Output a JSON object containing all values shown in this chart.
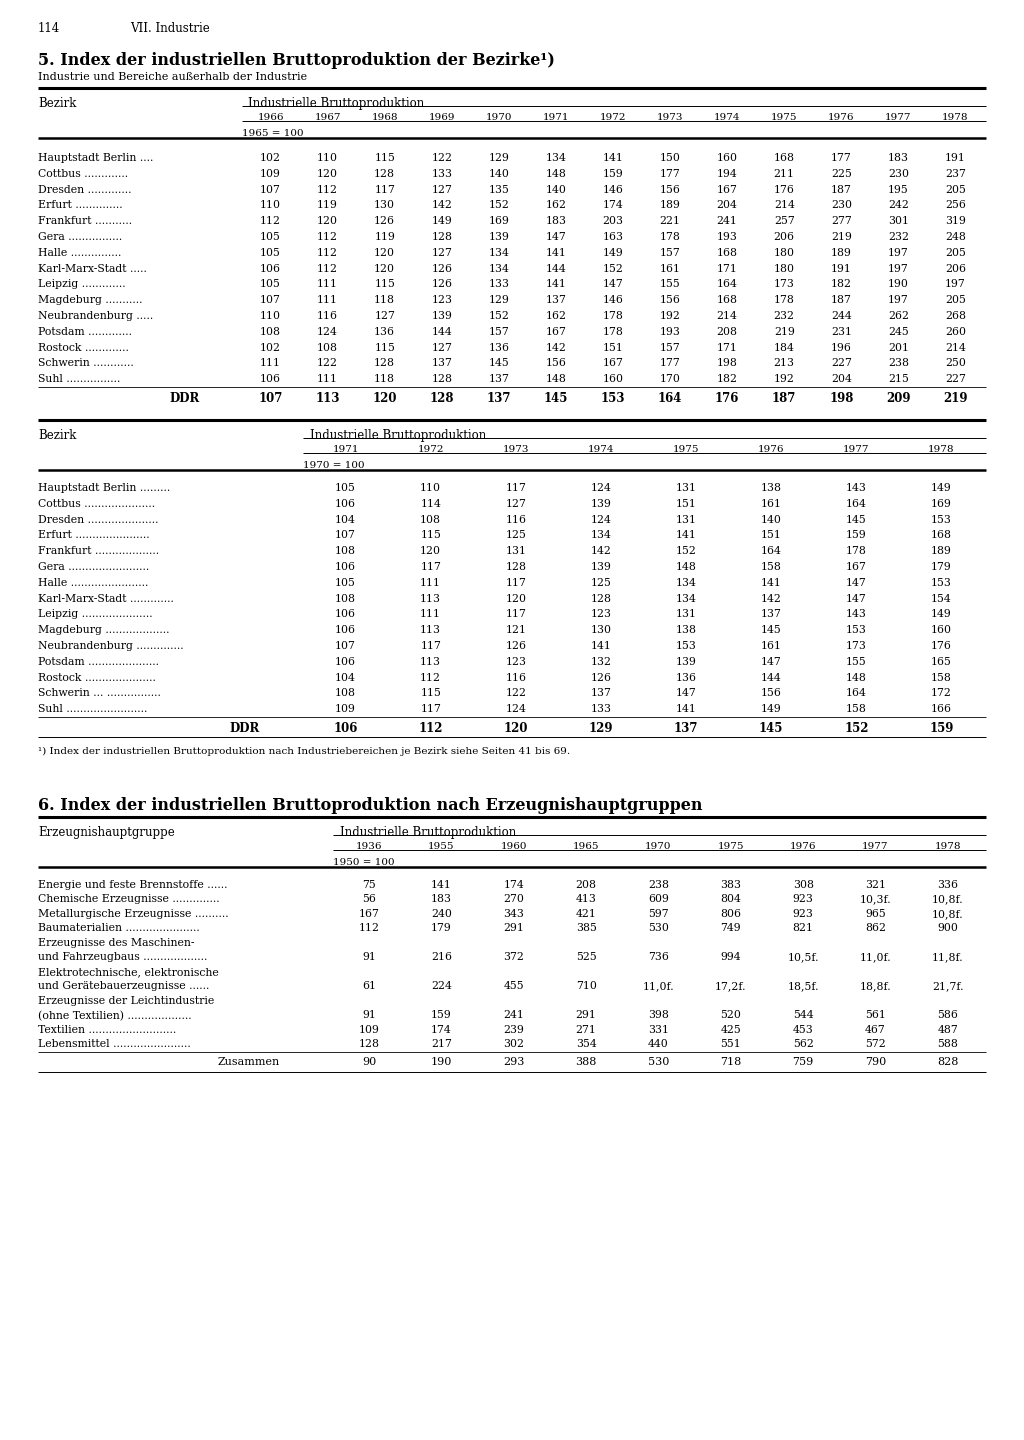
{
  "page_num": "114",
  "chapter": "VII. Industrie",
  "section5_title": "5. Index der industriellen Bruttoproduktion der Bezirke¹)",
  "section5_subtitle": "Industrie und Bereiche außerhalb der Industrie",
  "table1_header_col": "Bezirk",
  "table1_header_group": "Industrielle Bruttoproduktion",
  "table1_years": [
    "1966",
    "1967",
    "1968",
    "1969",
    "1970",
    "1971",
    "1972",
    "1973",
    "1974",
    "1975",
    "1976",
    "1977",
    "1978"
  ],
  "table1_base": "1965 = 100",
  "table1_rows": [
    [
      "Hauptstadt Berlin ....",
      102,
      110,
      115,
      122,
      129,
      134,
      141,
      150,
      160,
      168,
      177,
      183,
      191
    ],
    [
      "Cottbus .............",
      109,
      120,
      128,
      133,
      140,
      148,
      159,
      177,
      194,
      211,
      225,
      230,
      237
    ],
    [
      "Dresden .............",
      107,
      112,
      117,
      127,
      135,
      140,
      146,
      156,
      167,
      176,
      187,
      195,
      205
    ],
    [
      "Erfurt ..............",
      110,
      119,
      130,
      142,
      152,
      162,
      174,
      189,
      204,
      214,
      230,
      242,
      256
    ],
    [
      "Frankfurt ...........",
      112,
      120,
      126,
      149,
      169,
      183,
      203,
      221,
      241,
      257,
      277,
      301,
      319
    ],
    [
      "Gera ................",
      105,
      112,
      119,
      128,
      139,
      147,
      163,
      178,
      193,
      206,
      219,
      232,
      248
    ],
    [
      "Halle ...............",
      105,
      112,
      120,
      127,
      134,
      141,
      149,
      157,
      168,
      180,
      189,
      197,
      205
    ],
    [
      "Karl-Marx-Stadt .....",
      106,
      112,
      120,
      126,
      134,
      144,
      152,
      161,
      171,
      180,
      191,
      197,
      206
    ],
    [
      "Leipzig .............",
      105,
      111,
      115,
      126,
      133,
      141,
      147,
      155,
      164,
      173,
      182,
      190,
      197
    ],
    [
      "Magdeburg ...........",
      107,
      111,
      118,
      123,
      129,
      137,
      146,
      156,
      168,
      178,
      187,
      197,
      205
    ],
    [
      "Neubrandenburg .....",
      110,
      116,
      127,
      139,
      152,
      162,
      178,
      192,
      214,
      232,
      244,
      262,
      268
    ],
    [
      "Potsdam .............",
      108,
      124,
      136,
      144,
      157,
      167,
      178,
      193,
      208,
      219,
      231,
      245,
      260
    ],
    [
      "Rostock .............",
      102,
      108,
      115,
      127,
      136,
      142,
      151,
      157,
      171,
      184,
      196,
      201,
      214
    ],
    [
      "Schwerin ............",
      111,
      122,
      128,
      137,
      145,
      156,
      167,
      177,
      198,
      213,
      227,
      238,
      250
    ],
    [
      "Suhl ................",
      106,
      111,
      118,
      128,
      137,
      148,
      160,
      170,
      182,
      192,
      204,
      215,
      227
    ]
  ],
  "table1_ddr": [
    "DDR",
    107,
    113,
    120,
    128,
    137,
    145,
    153,
    164,
    176,
    187,
    198,
    209,
    219
  ],
  "table2_years": [
    "1971",
    "1972",
    "1973",
    "1974",
    "1975",
    "1976",
    "1977",
    "1978"
  ],
  "table2_base": "1970 = 100",
  "table2_rows": [
    [
      "Hauptstadt Berlin .........",
      105,
      110,
      117,
      124,
      131,
      138,
      143,
      149
    ],
    [
      "Cottbus .....................",
      106,
      114,
      127,
      139,
      151,
      161,
      164,
      169
    ],
    [
      "Dresden .....................",
      104,
      108,
      116,
      124,
      131,
      140,
      145,
      153
    ],
    [
      "Erfurt ......................",
      107,
      115,
      125,
      134,
      141,
      151,
      159,
      168
    ],
    [
      "Frankfurt ...................",
      108,
      120,
      131,
      142,
      152,
      164,
      178,
      189
    ],
    [
      "Gera ........................",
      106,
      117,
      128,
      139,
      148,
      158,
      167,
      179
    ],
    [
      "Halle .......................",
      105,
      111,
      117,
      125,
      134,
      141,
      147,
      153
    ],
    [
      "Karl-Marx-Stadt .............",
      108,
      113,
      120,
      128,
      134,
      142,
      147,
      154
    ],
    [
      "Leipzig .....................",
      106,
      111,
      117,
      123,
      131,
      137,
      143,
      149
    ],
    [
      "Magdeburg ...................",
      106,
      113,
      121,
      130,
      138,
      145,
      153,
      160
    ],
    [
      "Neubrandenburg ..............",
      107,
      117,
      126,
      141,
      153,
      161,
      173,
      176
    ],
    [
      "Potsdam .....................",
      106,
      113,
      123,
      132,
      139,
      147,
      155,
      165
    ],
    [
      "Rostock .....................",
      104,
      112,
      116,
      126,
      136,
      144,
      148,
      158
    ],
    [
      "Schwerin ... ................",
      108,
      115,
      122,
      137,
      147,
      156,
      164,
      172
    ],
    [
      "Suhl ........................",
      109,
      117,
      124,
      133,
      141,
      149,
      158,
      166
    ]
  ],
  "table2_ddr": [
    "DDR",
    106,
    112,
    120,
    129,
    137,
    145,
    152,
    159
  ],
  "footnote": "¹) Index der industriellen Bruttoproduktion nach Industriebereichen je Bezirk siehe Seiten 41 bis 69.",
  "section6_title": "6. Index der industriellen Bruttoproduktion nach Erzeugnishauptgruppen",
  "table3_header_col": "Erzeugnishauptgruppe",
  "table3_header_group": "Industrielle Bruttoproduktion",
  "table3_years": [
    "1936",
    "1955",
    "1960",
    "1965",
    "1970",
    "1975",
    "1976",
    "1977",
    "1978"
  ],
  "table3_base": "1950 = 100",
  "table3_rows": [
    [
      "Energie und feste Brennstoffe ......",
      75,
      141,
      174,
      208,
      238,
      383,
      308,
      321,
      336
    ],
    [
      "Chemische Erzeugnisse ..............",
      56,
      183,
      270,
      413,
      609,
      804,
      923,
      "10,3f.",
      "10,8f."
    ],
    [
      "Metallurgische Erzeugnisse ..........",
      167,
      240,
      343,
      421,
      597,
      806,
      923,
      965,
      "10,8f."
    ],
    [
      "Baumaterialien ......................",
      112,
      179,
      291,
      385,
      530,
      749,
      821,
      862,
      900
    ],
    [
      "Erzeugnisse des Maschinen-",
      "",
      "",
      "",
      "",
      "",
      "",
      "",
      "",
      ""
    ],
    [
      "und Fahrzeugbaus ...................",
      91,
      216,
      372,
      525,
      736,
      994,
      "10,5f.",
      "11,0f.",
      "11,8f."
    ],
    [
      "Elektrotechnische, elektronische",
      "",
      "",
      "",
      "",
      "",
      "",
      "",
      "",
      ""
    ],
    [
      "und Gerätebauerzeugnisse ......",
      61,
      224,
      455,
      710,
      "11,0f.",
      "17,2f.",
      "18,5f.",
      "18,8f.",
      "21,7f."
    ],
    [
      "Erzeugnisse der Leichtindustrie",
      "",
      "",
      "",
      "",
      "",
      "",
      "",
      "",
      ""
    ],
    [
      "(ohne Textilien) ...................",
      91,
      159,
      241,
      291,
      398,
      520,
      544,
      561,
      586
    ],
    [
      "Textilien ..........................",
      109,
      174,
      239,
      271,
      331,
      425,
      453,
      467,
      487
    ],
    [
      "Lebensmittel .......................",
      128,
      217,
      302,
      354,
      440,
      551,
      562,
      572,
      588
    ]
  ],
  "table3_zusammen": [
    "Zusammen",
    90,
    190,
    293,
    388,
    530,
    718,
    759,
    790,
    828
  ],
  "bg_color": "#ffffff",
  "text_color": "#000000",
  "line_color": "#000000"
}
